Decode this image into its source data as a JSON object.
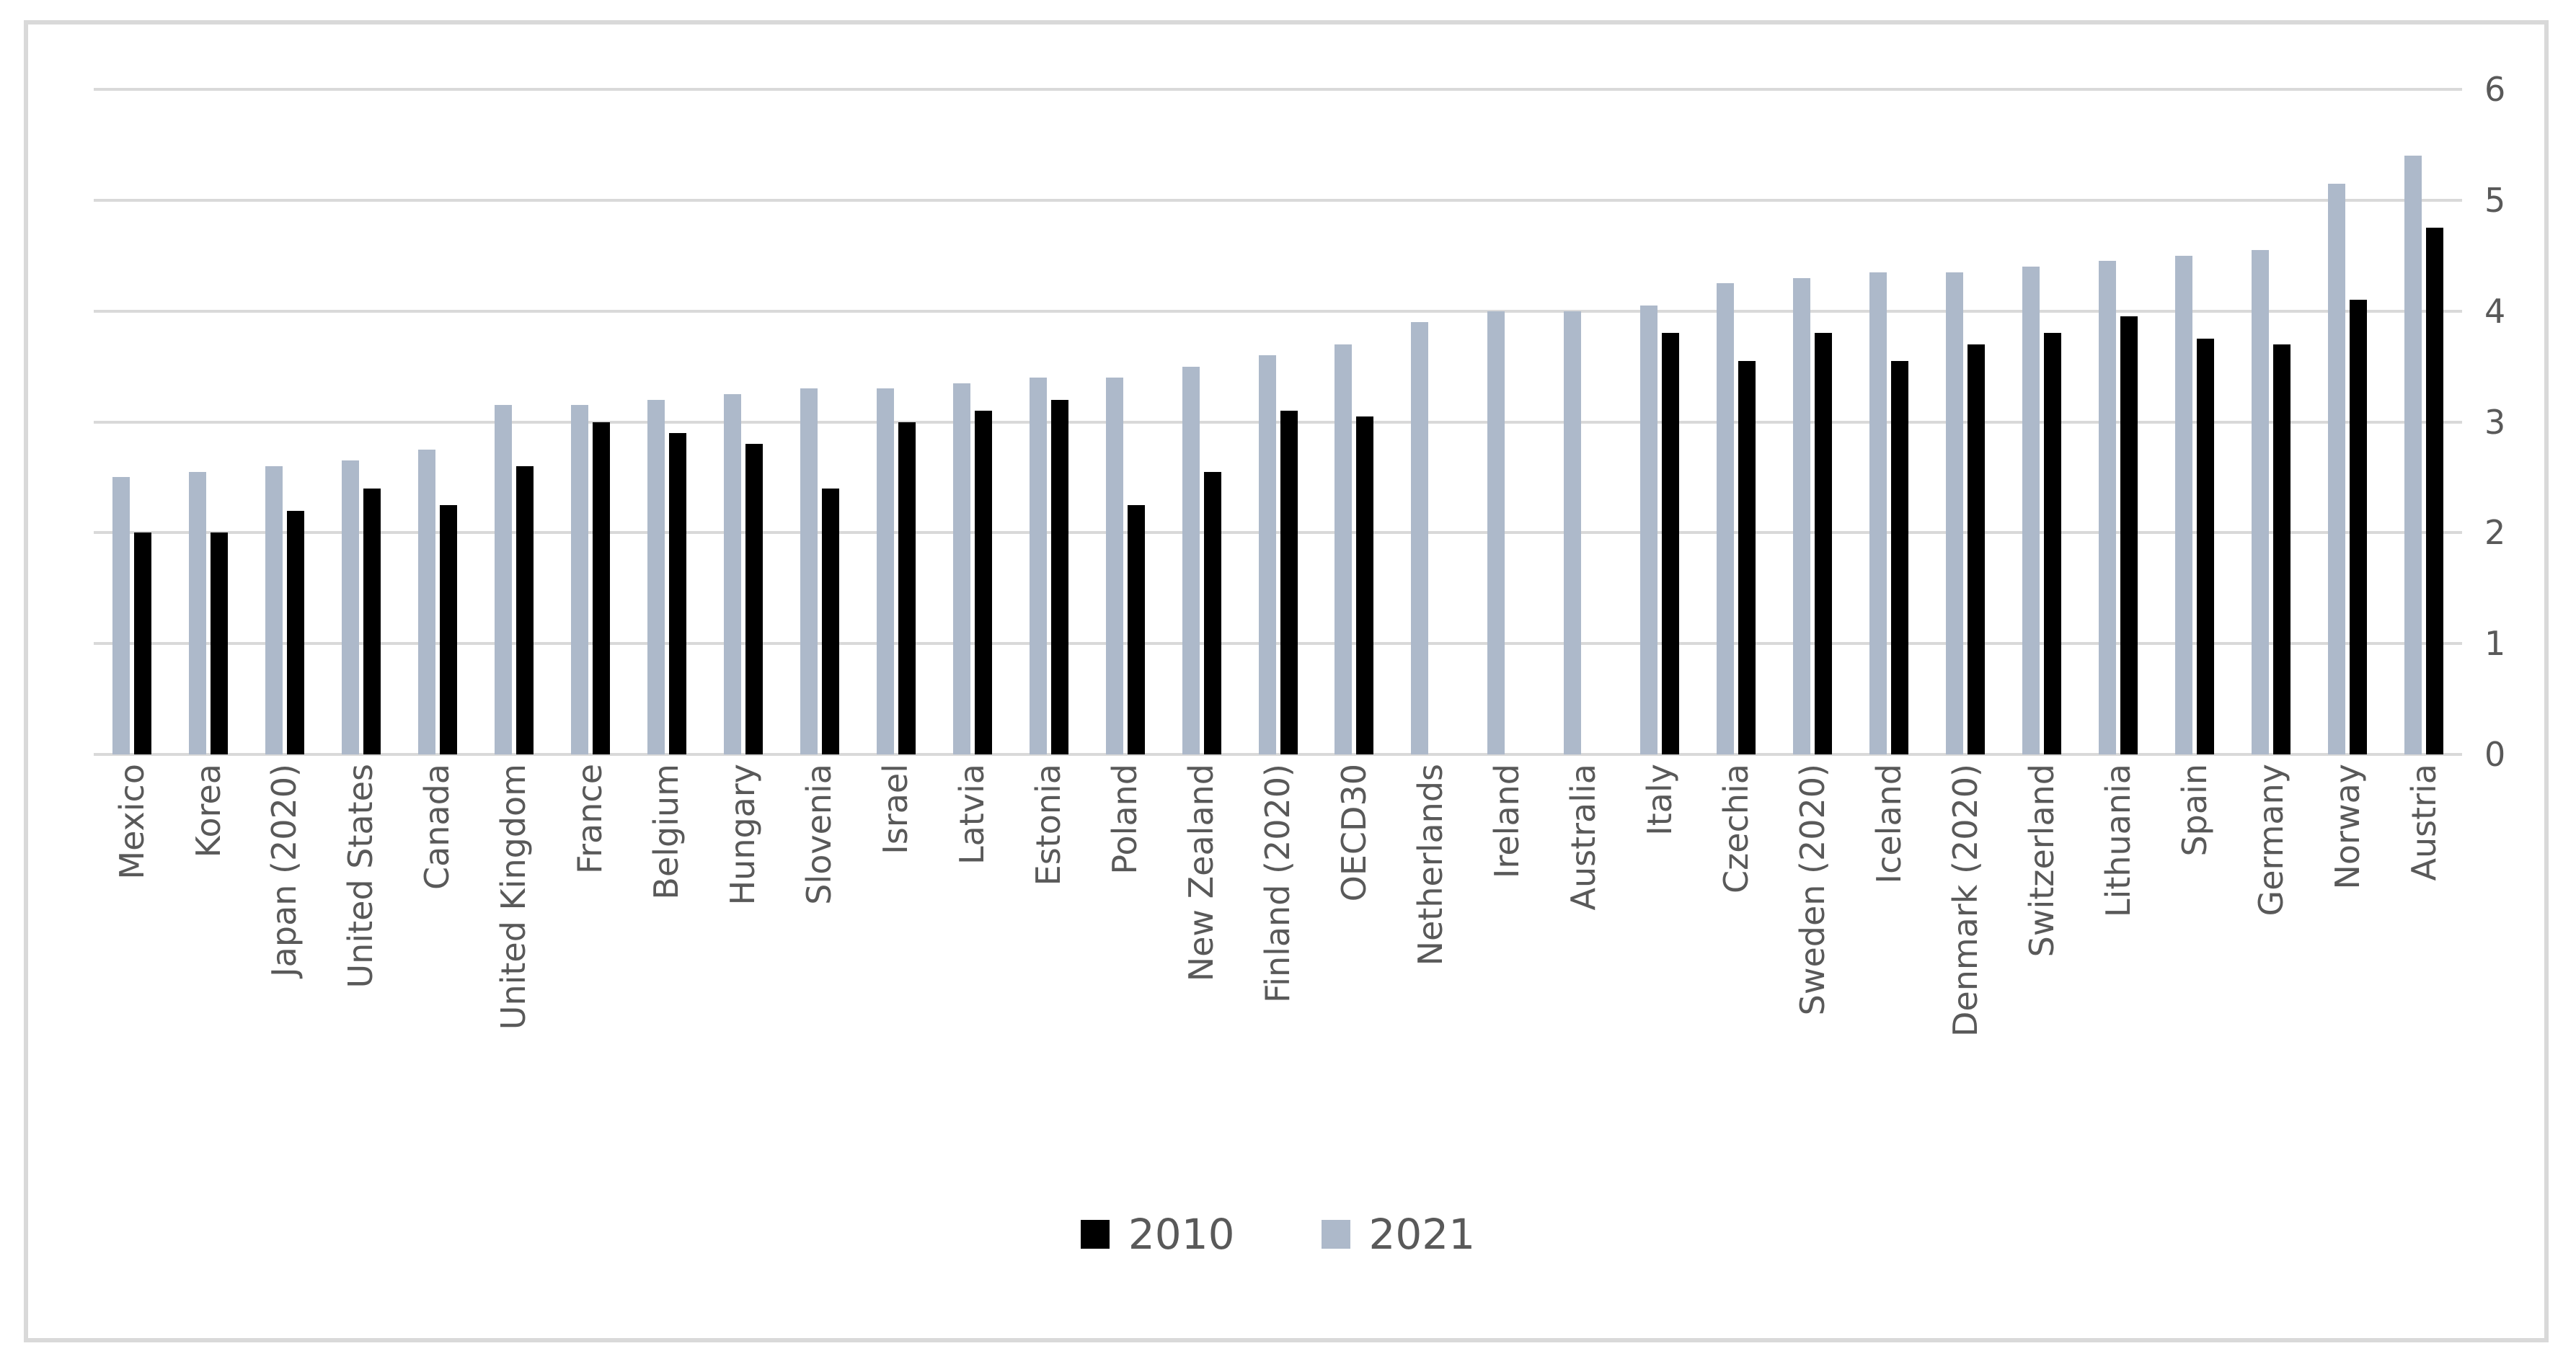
{
  "figure": {
    "background_color": "#FFFFFF",
    "border_color": "#D9D9D9",
    "text_color": "#595959",
    "gridline_color": "#D9D9D9"
  },
  "y_axis": {
    "ticks": [
      "0",
      "1",
      "2",
      "3",
      "4",
      "5",
      "6"
    ],
    "min": 0,
    "max": 6,
    "side": "right"
  },
  "legend": {
    "position": "bottom-center",
    "items": [
      {
        "label": "2010",
        "color": "#000000"
      },
      {
        "label": "2021",
        "color": "#ADB9CA"
      }
    ]
  },
  "chart_data": {
    "type": "bar",
    "title": "",
    "xlabel": "",
    "ylabel": "",
    "ylim": [
      0,
      6
    ],
    "grid": true,
    "legend_position": "bottom",
    "x_label_rotation": 90,
    "categories": [
      "Mexico",
      "Korea",
      "Japan (2020)",
      "United States",
      "Canada",
      "United Kingdom",
      "France",
      "Belgium",
      "Hungary",
      "Slovenia",
      "Israel",
      "Latvia",
      "Estonia",
      "Poland",
      "New Zealand",
      "Finland (2020)",
      "OECD30",
      "Netherlands",
      "Ireland",
      "Australia",
      "Italy",
      "Czechia",
      "Sweden (2020)",
      "Iceland",
      "Denmark (2020)",
      "Switzerland",
      "Lithuania",
      "Spain",
      "Germany",
      "Norway",
      "Austria"
    ],
    "series": [
      {
        "name": "2010",
        "color": "#000000",
        "values": [
          2.0,
          2.0,
          2.2,
          2.4,
          2.25,
          2.6,
          3.0,
          2.9,
          2.8,
          2.4,
          3.0,
          3.1,
          3.2,
          2.25,
          2.55,
          3.1,
          3.05,
          null,
          null,
          null,
          3.8,
          3.55,
          3.8,
          3.55,
          3.7,
          3.8,
          3.95,
          3.75,
          3.7,
          4.1,
          4.75
        ]
      },
      {
        "name": "2021",
        "color": "#ADB9CA",
        "values": [
          2.5,
          2.55,
          2.6,
          2.65,
          2.75,
          3.15,
          3.15,
          3.2,
          3.25,
          3.3,
          3.3,
          3.35,
          3.4,
          3.4,
          3.5,
          3.6,
          3.7,
          3.9,
          4.0,
          4.0,
          4.05,
          4.25,
          4.3,
          4.35,
          4.35,
          4.4,
          4.45,
          4.5,
          4.55,
          5.15,
          5.4
        ]
      }
    ],
    "bar_draw_order": [
      "2021",
      "2010"
    ]
  }
}
